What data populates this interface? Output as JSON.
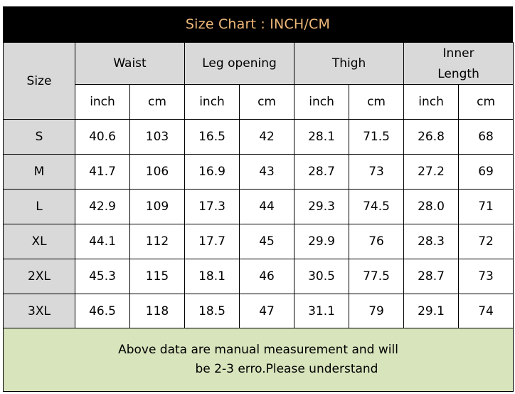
{
  "title": "Size Chart : INCH/CM",
  "header": {
    "size_label": "Size",
    "groups": [
      "Waist",
      "Leg opening",
      "Thigh",
      "Inner Length"
    ],
    "inner_line1": "Inner",
    "inner_line2": "Length",
    "unit_inch": "inch",
    "unit_cm": "cm"
  },
  "rows": [
    {
      "size": "S",
      "waist_in": "40.6",
      "waist_cm": "103",
      "leg_in": "16.5",
      "leg_cm": "42",
      "thigh_in": "28.1",
      "thigh_cm": "71.5",
      "inner_in": "26.8",
      "inner_cm": "68"
    },
    {
      "size": "M",
      "waist_in": "41.7",
      "waist_cm": "106",
      "leg_in": "16.9",
      "leg_cm": "43",
      "thigh_in": "28.7",
      "thigh_cm": "73",
      "inner_in": "27.2",
      "inner_cm": "69"
    },
    {
      "size": "L",
      "waist_in": "42.9",
      "waist_cm": "109",
      "leg_in": "17.3",
      "leg_cm": "44",
      "thigh_in": "29.3",
      "thigh_cm": "74.5",
      "inner_in": "28.0",
      "inner_cm": "71"
    },
    {
      "size": "XL",
      "waist_in": "44.1",
      "waist_cm": "112",
      "leg_in": "17.7",
      "leg_cm": "45",
      "thigh_in": "29.9",
      "thigh_cm": "76",
      "inner_in": "28.3",
      "inner_cm": "72"
    },
    {
      "size": "2XL",
      "waist_in": "45.3",
      "waist_cm": "115",
      "leg_in": "18.1",
      "leg_cm": "46",
      "thigh_in": "30.5",
      "thigh_cm": "77.5",
      "inner_in": "28.7",
      "inner_cm": "73"
    },
    {
      "size": "3XL",
      "waist_in": "46.5",
      "waist_cm": "118",
      "leg_in": "18.5",
      "leg_cm": "47",
      "thigh_in": "31.1",
      "thigh_cm": "79",
      "inner_in": "29.1",
      "inner_cm": "74"
    }
  ],
  "note": {
    "line1": "Above data are manual measurement and will",
    "line2": "be 2-3 erro.Please understand"
  },
  "colors": {
    "title_bg": "#000000",
    "title_text": "#f0b97a",
    "header_bg": "#d9d9d9",
    "inch_value": "#c00000",
    "note_bg": "#d8e4bc"
  }
}
